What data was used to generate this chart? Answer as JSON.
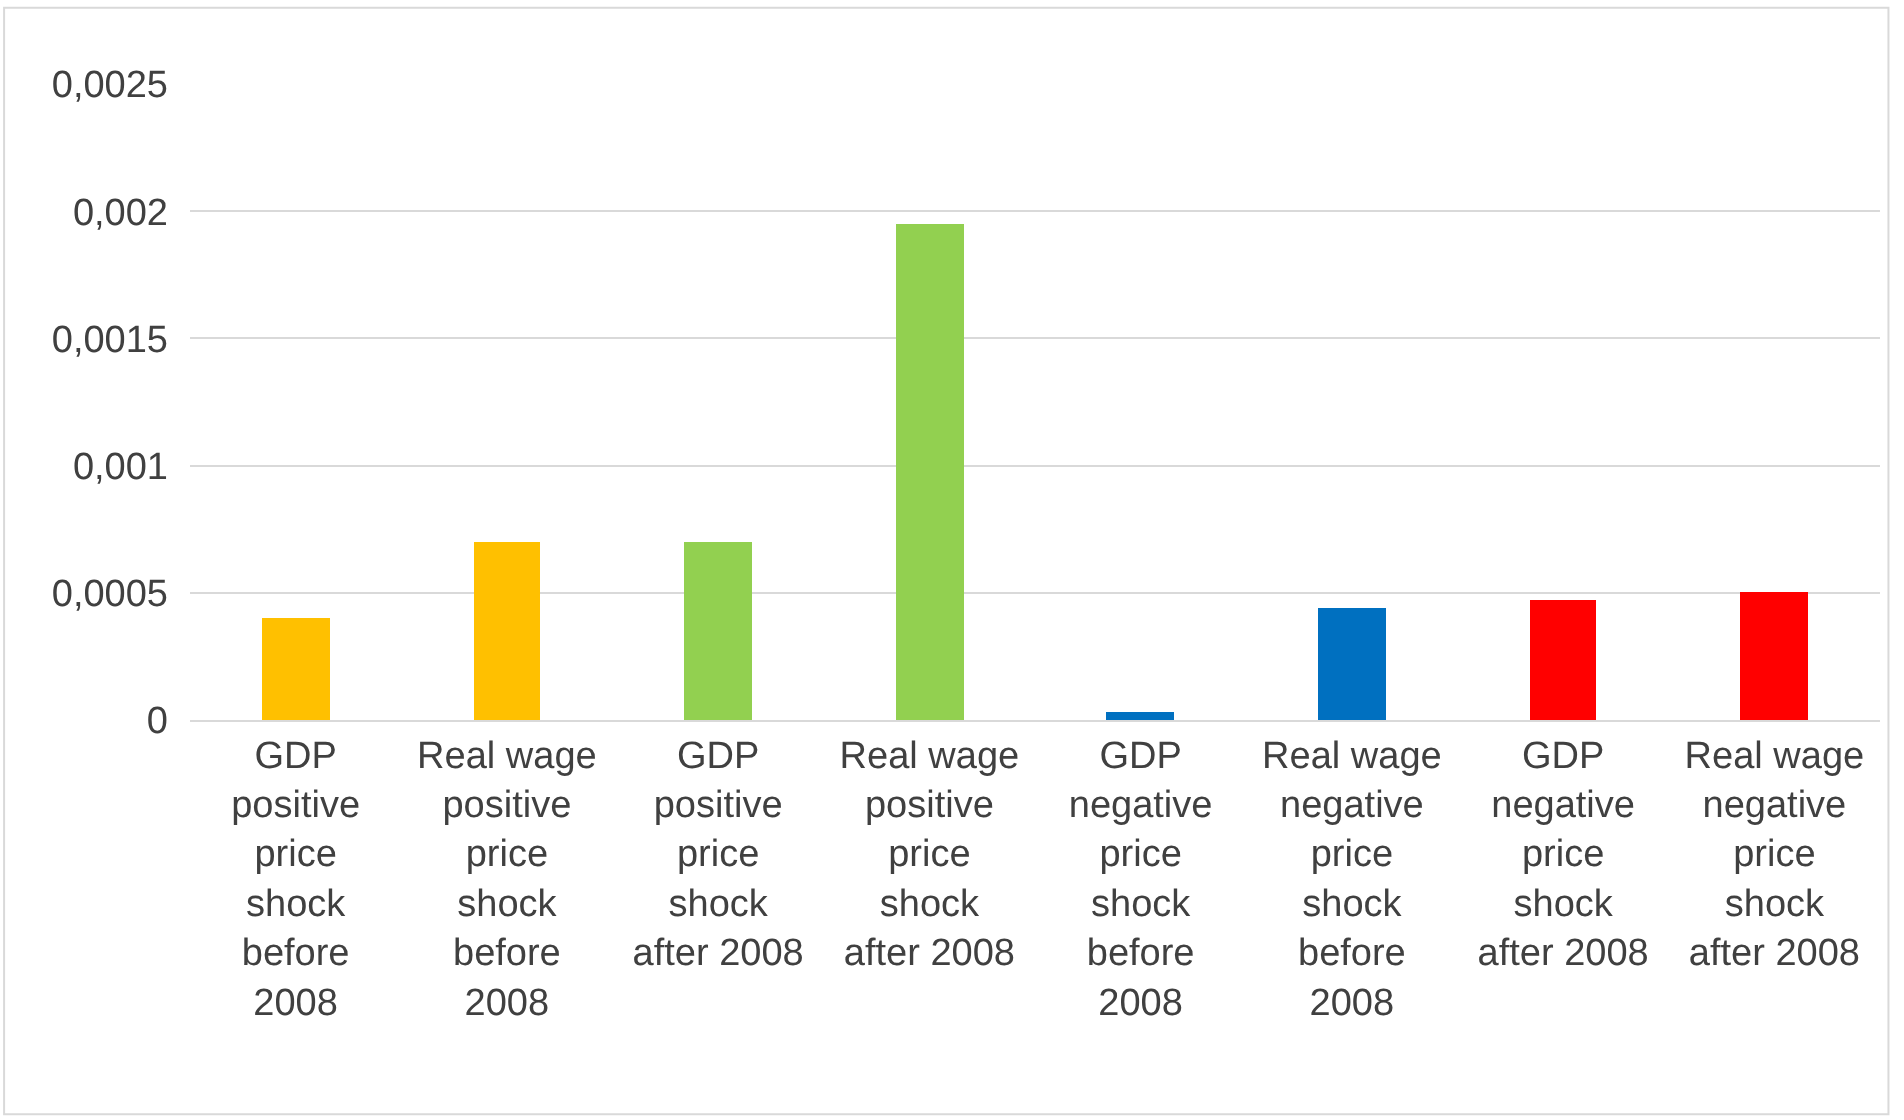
{
  "chart_data": {
    "type": "bar",
    "categories": [
      "GDP positive price shock before 2008",
      "Real wage positive price shock before 2008",
      "GDP positive price shock after 2008",
      "Real wage positive price shock after 2008",
      "GDP negative price shock before 2008",
      "Real wage negative price shock before 2008",
      "GDP negative price shock after 2008",
      "Real wage negative price shock after 2008"
    ],
    "values": [
      0.0004,
      0.0007,
      0.0007,
      0.00195,
      3e-05,
      0.00044,
      0.00047,
      0.0005
    ],
    "colors": [
      "#ffc000",
      "#ffc000",
      "#92d050",
      "#92d050",
      "#0070c0",
      "#0070c0",
      "#ff0000",
      "#ff0000"
    ],
    "ylim": [
      0,
      0.0025
    ],
    "yticks": [
      {
        "value": 0,
        "label": "0"
      },
      {
        "value": 0.0005,
        "label": "0,0005"
      },
      {
        "value": 0.001,
        "label": "0,001"
      },
      {
        "value": 0.0015,
        "label": "0,0015"
      },
      {
        "value": 0.002,
        "label": "0,002"
      },
      {
        "value": 0.0025,
        "label": "0,0025"
      }
    ],
    "grid": "y",
    "legend": false
  }
}
